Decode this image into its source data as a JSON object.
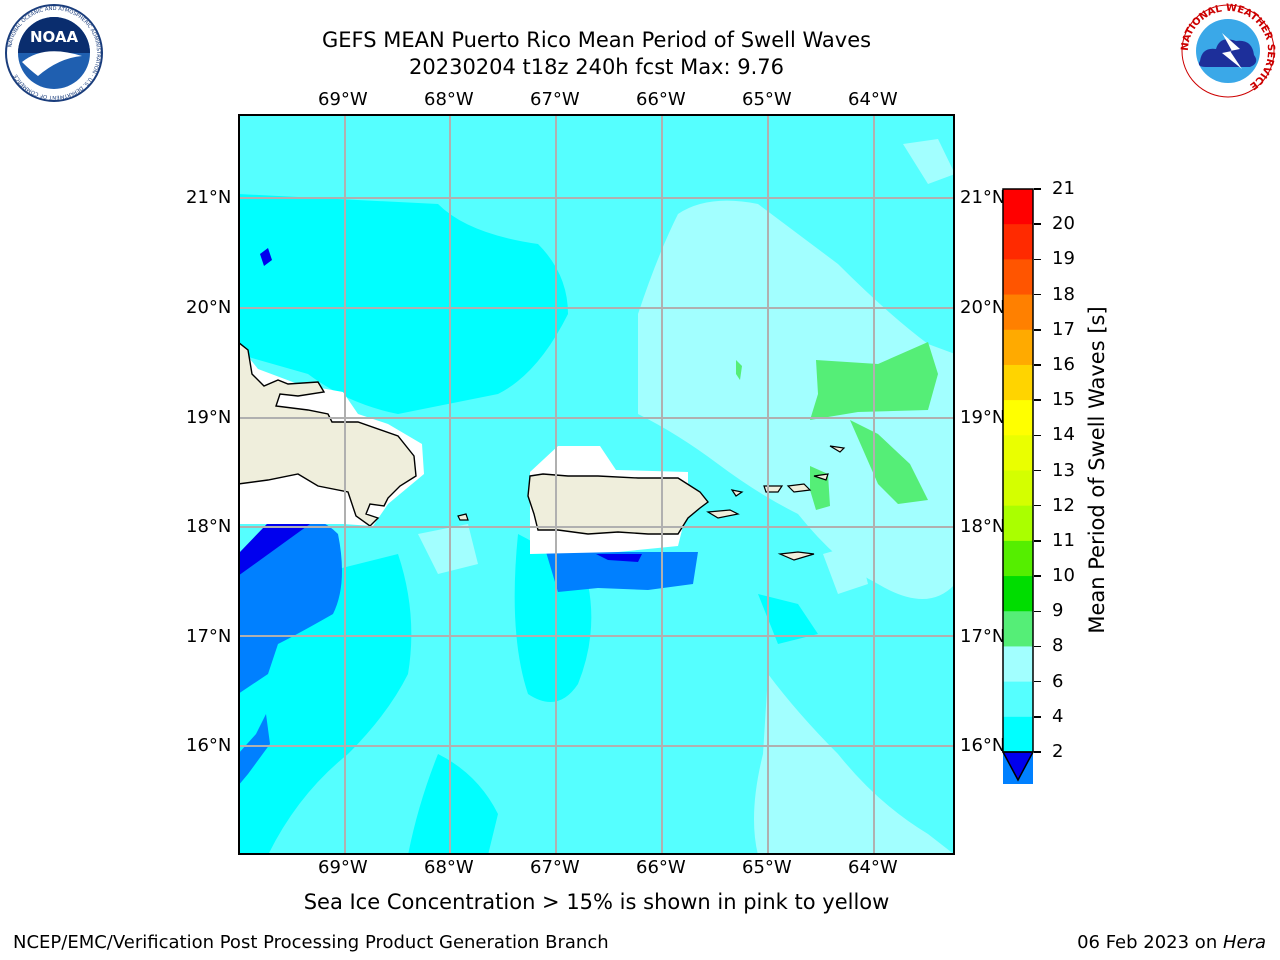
{
  "title": {
    "line1": "GEFS MEAN Puerto Rico Mean Period of Swell Waves",
    "line2": "20230204 t18z 240h fcst   Max: 9.76"
  },
  "logos": {
    "left": "noaa-logo",
    "right": "nws-logo",
    "noaa_text": "NOAA",
    "noaa_ring": "NATIONAL OCEANIC AND ATMOSPHERIC ADMINISTRATION · U.S. DEPARTMENT OF COMMERCE",
    "nws_ring": "NATIONAL WEATHER SERVICE"
  },
  "map": {
    "lon_labels": [
      "69°W",
      "68°W",
      "67°W",
      "66°W",
      "65°W",
      "64°W"
    ],
    "lat_labels": [
      "21°N",
      "20°N",
      "19°N",
      "18°N",
      "17°N",
      "16°N"
    ],
    "land_color": "#efeedc",
    "grid_color": "#b0b0b0"
  },
  "colorbar": {
    "label": "Mean Period of Swell Waves [s]",
    "ticks": [
      "21",
      "20",
      "19",
      "18",
      "17",
      "16",
      "15",
      "14",
      "13",
      "12",
      "11",
      "10",
      "9",
      "8",
      "6",
      "4",
      "2"
    ],
    "colors": [
      "#ff0000",
      "#ff2a00",
      "#ff5500",
      "#ff8000",
      "#ffaa00",
      "#ffd400",
      "#ffff00",
      "#eaff00",
      "#d4ff00",
      "#aaff00",
      "#55ee00",
      "#00dd00",
      "#55ee77",
      "#a2ffff",
      "#55ffff",
      "#00ffff",
      "#0080ff"
    ],
    "under_color": "#0000ee"
  },
  "caption": "Sea Ice Concentration > 15% is shown in pink to yellow",
  "footer": {
    "left": "NCEP/EMC/Verification Post Processing Product Generation Branch",
    "right_date": "06 Feb 2023 on ",
    "right_host": "Hera"
  }
}
